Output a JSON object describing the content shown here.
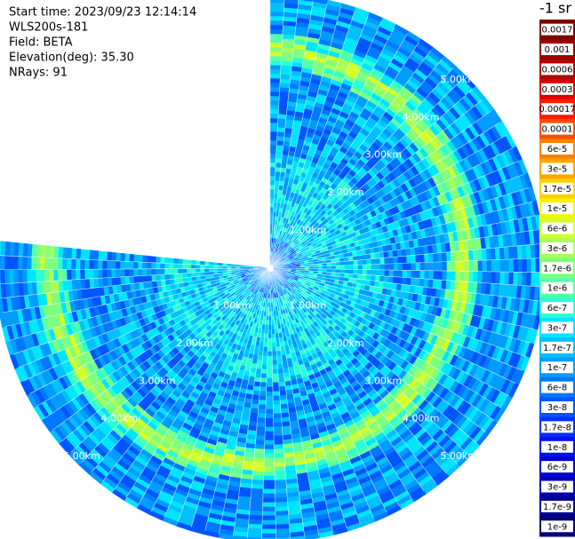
{
  "chart_data": {
    "type": "ppi",
    "info": [
      "Start time: 2023/09/23 12:14:14",
      "WLS200s-181",
      "Field: BETA",
      "Elevation(deg): 35.30",
      "NRays: 91"
    ],
    "colorbar_title": "-1 sr",
    "colorbar": [
      {
        "label": "0.0017",
        "color": "#7f0000"
      },
      {
        "label": "0.001",
        "color": "#990000"
      },
      {
        "label": "0.0006",
        "color": "#b30000"
      },
      {
        "label": "0.0003",
        "color": "#d90000"
      },
      {
        "label": "0.00017",
        "color": "#ff1a00"
      },
      {
        "label": "0.0001",
        "color": "#ff4d00"
      },
      {
        "label": "6e-5",
        "color": "#ff8000"
      },
      {
        "label": "3e-5",
        "color": "#ffa600"
      },
      {
        "label": "1.7e-5",
        "color": "#ffd000"
      },
      {
        "label": "1e-5",
        "color": "#f5f500"
      },
      {
        "label": "6e-6",
        "color": "#d4ff2a"
      },
      {
        "label": "3e-6",
        "color": "#aaff55"
      },
      {
        "label": "1.7e-6",
        "color": "#7fff7f"
      },
      {
        "label": "1e-6",
        "color": "#55ffaa"
      },
      {
        "label": "6e-7",
        "color": "#2affd4"
      },
      {
        "label": "3e-7",
        "color": "#00e5ff"
      },
      {
        "label": "1.7e-7",
        "color": "#00c0ff"
      },
      {
        "label": "1e-7",
        "color": "#009cff"
      },
      {
        "label": "6e-8",
        "color": "#0078ff"
      },
      {
        "label": "3e-8",
        "color": "#0055ff"
      },
      {
        "label": "1.7e-8",
        "color": "#0030ff"
      },
      {
        "label": "1e-8",
        "color": "#0010f0"
      },
      {
        "label": "6e-9",
        "color": "#0000d0"
      },
      {
        "label": "3e-9",
        "color": "#0000b0"
      },
      {
        "label": "1.7e-9",
        "color": "#000090"
      },
      {
        "label": "1e-9",
        "color": "#000070"
      }
    ],
    "range_labels": [
      "1.00km",
      "2.00km",
      "3.00km",
      "4.00km",
      "5.00km"
    ]
  }
}
